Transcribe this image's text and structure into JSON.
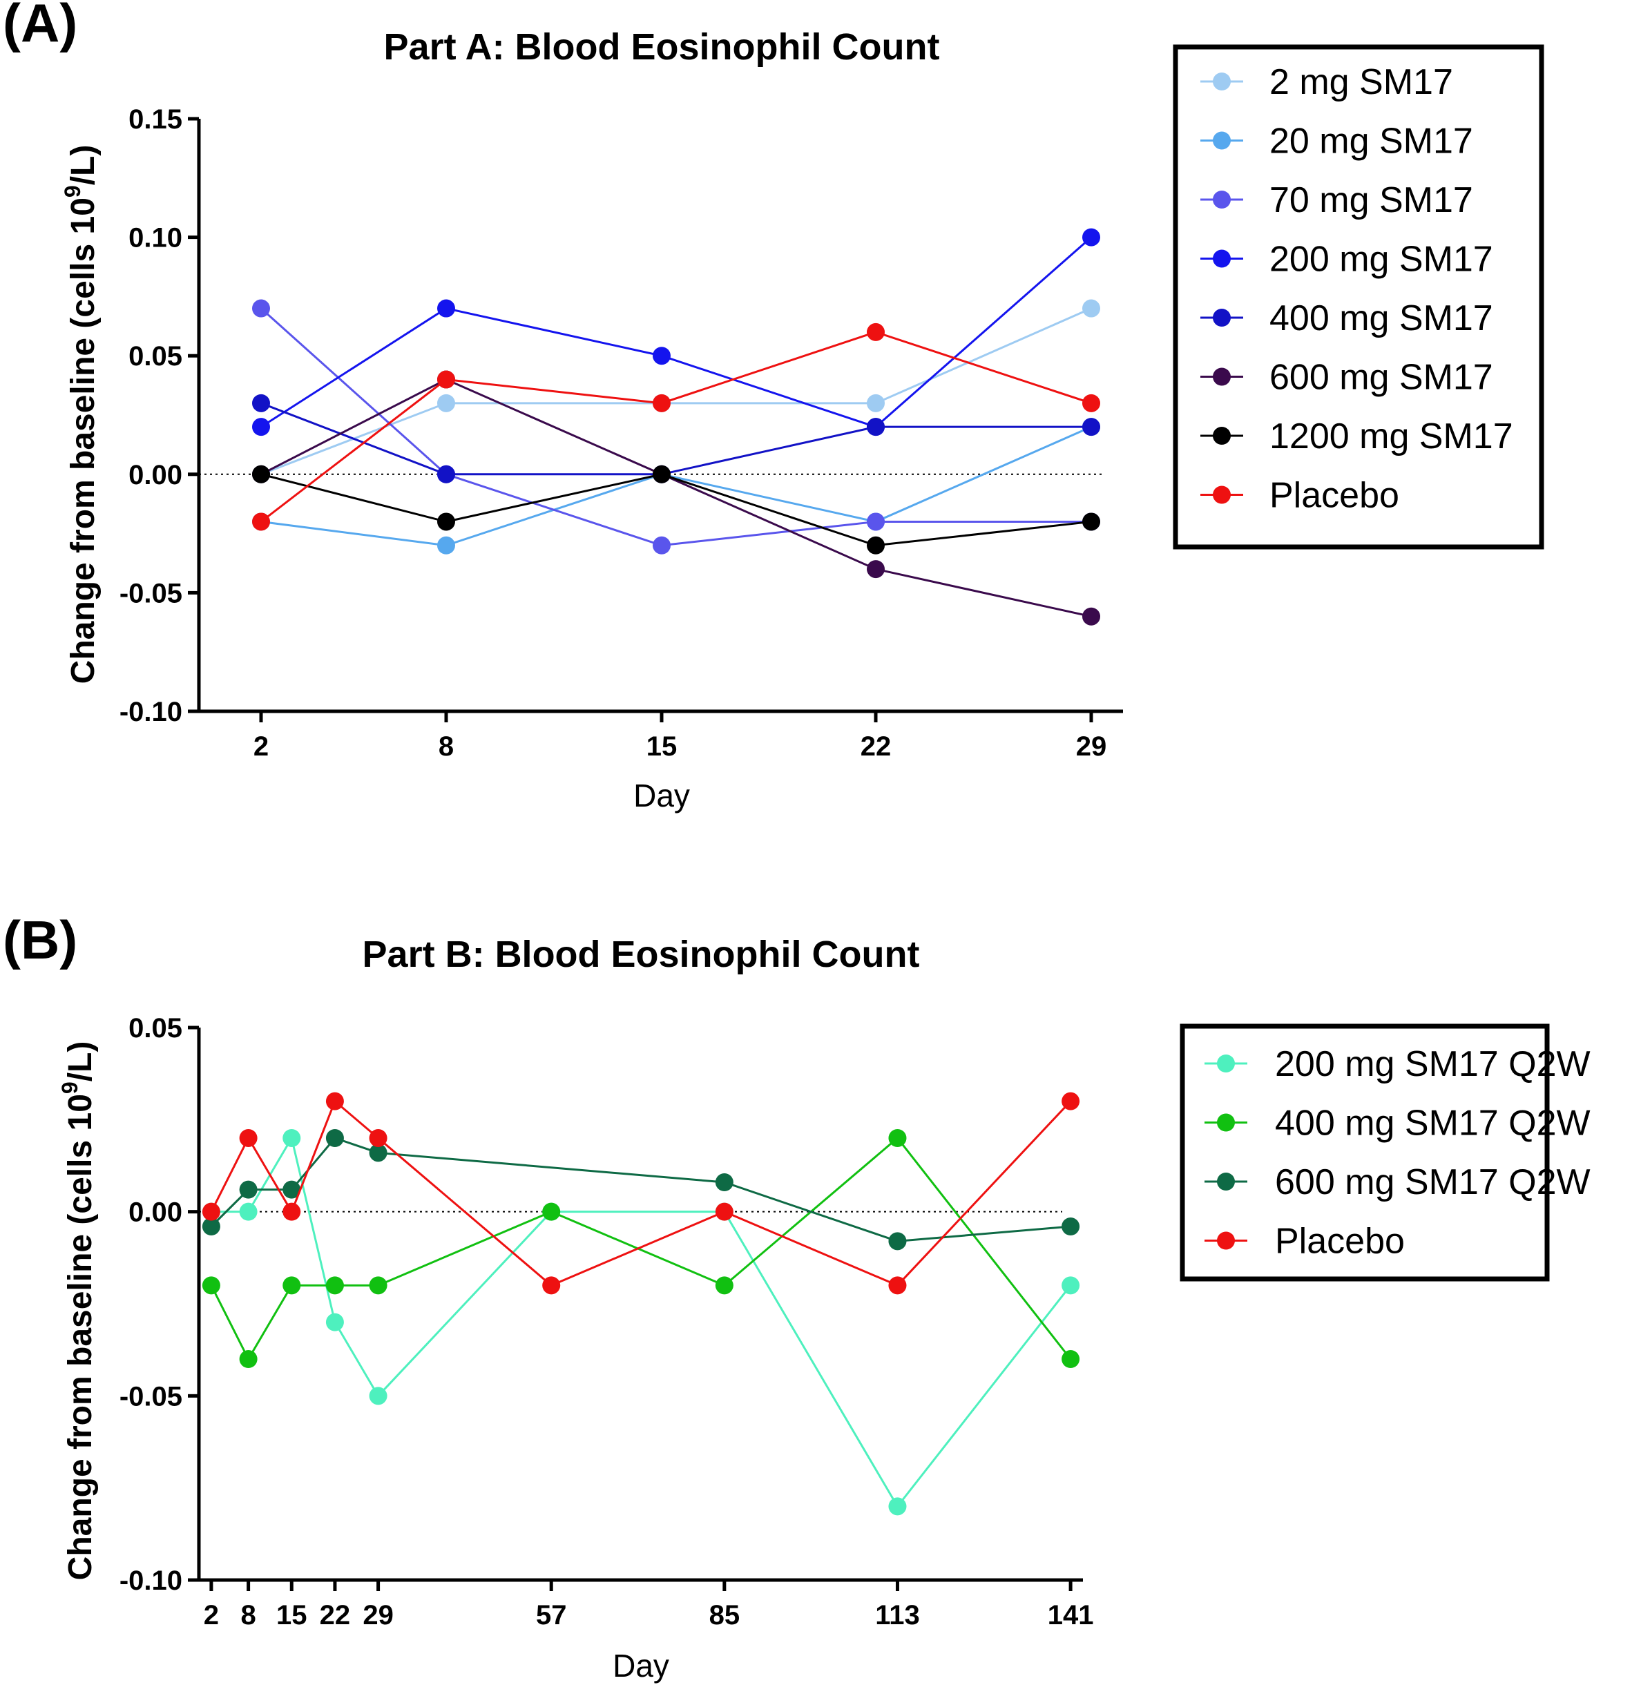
{
  "chart_data": [
    {
      "panel_label": "(A)",
      "type": "line",
      "title": "Part A: Blood Eosinophil Count",
      "xlabel": "Day",
      "ylabel_prefix": "Change from baseline (cells 10",
      "ylabel_sup": "9",
      "ylabel_suffix": "/L)",
      "x_axis_mode": "categorical",
      "categories": [
        "2",
        "8",
        "15",
        "22",
        "29"
      ],
      "x": [
        2,
        8,
        15,
        22,
        29
      ],
      "xlim": [
        0,
        30
      ],
      "ylim": [
        -0.1,
        0.15
      ],
      "yticks": [
        "0.15",
        "0.10",
        "0.05",
        "0.00",
        "-0.05",
        "-0.10"
      ],
      "ytick_values": [
        0.15,
        0.1,
        0.05,
        0.0,
        -0.05,
        -0.1
      ],
      "reference_line": 0,
      "legend_position": "right",
      "series": [
        {
          "name": "2 mg SM17",
          "color": "#9ecbf2",
          "values": [
            0.0,
            0.03,
            0.03,
            0.03,
            0.07
          ]
        },
        {
          "name": "20 mg SM17",
          "color": "#56a8ee",
          "values": [
            -0.02,
            -0.03,
            0.0,
            -0.02,
            0.02
          ]
        },
        {
          "name": "70 mg SM17",
          "color": "#5a55ec",
          "values": [
            0.07,
            0.0,
            -0.03,
            -0.02,
            -0.02
          ]
        },
        {
          "name": "200 mg SM17",
          "color": "#1414ee",
          "values": [
            0.02,
            0.07,
            0.05,
            0.02,
            0.1
          ]
        },
        {
          "name": "400 mg SM17",
          "color": "#1212c6",
          "values": [
            0.03,
            0.0,
            0.0,
            0.02,
            0.02
          ]
        },
        {
          "name": "600 mg SM17",
          "color": "#3a0a4c",
          "values": [
            0.0,
            0.04,
            0.0,
            -0.04,
            -0.06
          ]
        },
        {
          "name": "1200 mg SM17",
          "color": "#000000",
          "values": [
            0.0,
            -0.02,
            0.0,
            -0.03,
            -0.02
          ]
        },
        {
          "name": "Placebo",
          "color": "#ee1111",
          "values": [
            -0.02,
            0.04,
            0.03,
            0.06,
            0.03
          ]
        }
      ]
    },
    {
      "panel_label": "(B)",
      "type": "line",
      "title": "Part B: Blood Eosinophil Count",
      "xlabel": "Day",
      "ylabel_prefix": "Change from baseline (cells 10",
      "ylabel_sup": "9",
      "ylabel_suffix": "/L)",
      "x_axis_mode": "numeric",
      "categories": [
        "2",
        "8",
        "15",
        "22",
        "29",
        "57",
        "85",
        "113",
        "141"
      ],
      "x": [
        2,
        8,
        15,
        22,
        29,
        57,
        85,
        113,
        141
      ],
      "xlim": [
        0,
        143
      ],
      "ylim": [
        -0.1,
        0.05
      ],
      "yticks": [
        "0.05",
        "0.00",
        "-0.05",
        "-0.10"
      ],
      "ytick_values": [
        0.05,
        0.0,
        -0.05,
        -0.1
      ],
      "reference_line": 0,
      "legend_position": "right",
      "series": [
        {
          "name": "200 mg SM17 Q2W",
          "color": "#4ef0be",
          "x": [
            2,
            8,
            15,
            22,
            29,
            57,
            85,
            113,
            141
          ],
          "values": [
            0.0,
            0.0,
            0.02,
            -0.03,
            -0.05,
            0.0,
            0.0,
            -0.08,
            -0.02
          ]
        },
        {
          "name": "400 mg SM17 Q2W",
          "color": "#11c011",
          "x": [
            2,
            8,
            15,
            22,
            29,
            57,
            85,
            113,
            141
          ],
          "values": [
            -0.02,
            -0.04,
            -0.02,
            -0.02,
            -0.02,
            0.0,
            -0.02,
            0.02,
            -0.04
          ]
        },
        {
          "name": "600 mg SM17 Q2W",
          "color": "#0e6a45",
          "x": [
            2,
            8,
            15,
            22,
            29,
            85,
            113,
            141
          ],
          "values": [
            -0.004,
            0.006,
            0.006,
            0.02,
            0.016,
            0.008,
            -0.008,
            -0.004
          ]
        },
        {
          "name": "Placebo",
          "color": "#ee1111",
          "x": [
            2,
            8,
            15,
            22,
            29,
            57,
            85,
            113,
            141
          ],
          "values": [
            0.0,
            0.02,
            0.0,
            0.03,
            0.02,
            -0.02,
            0.0,
            -0.02,
            0.03
          ]
        }
      ]
    }
  ]
}
